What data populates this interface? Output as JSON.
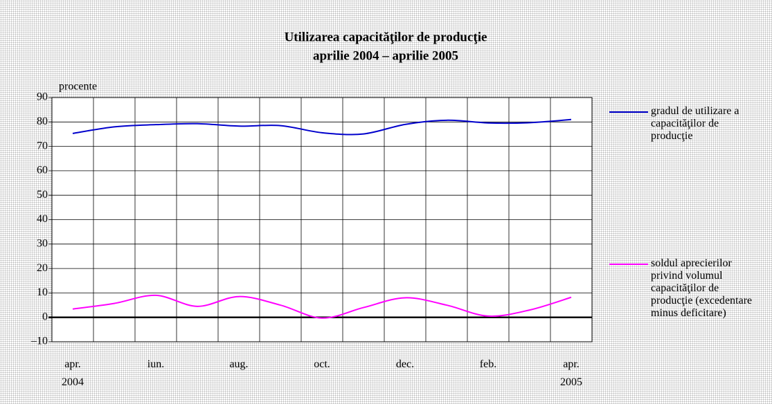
{
  "chart_data": {
    "type": "line",
    "title": "Utilizarea capacităţilor de producţie",
    "subtitle": "aprilie 2004 – aprilie 2005",
    "y_label": "procente",
    "categories": [
      "apr. 2004",
      null,
      "iun.",
      null,
      "aug.",
      null,
      "oct.",
      null,
      "dec.",
      null,
      "feb.",
      null,
      "apr. 2005"
    ],
    "series": [
      {
        "name": "gradul de utilizare a capacităţilor de producţie",
        "color": "#0000cc",
        "values": [
          75.3,
          78.0,
          78.9,
          79.3,
          78.3,
          78.5,
          75.6,
          75.1,
          79.0,
          80.7,
          79.6,
          79.7,
          81.0
        ]
      },
      {
        "name": "soldul aprecierilor privind volumul capacităţilor de producţie (excedentare minus deficitare)",
        "color": "#ff00ff",
        "values": [
          3.4,
          5.7,
          9.0,
          4.5,
          8.5,
          5.0,
          -0.3,
          4.0,
          8.0,
          5.0,
          0.5,
          3.0,
          8.2
        ]
      }
    ],
    "ylim": [
      -10,
      90
    ],
    "yticks": [
      {
        "value": -10,
        "label": "–10"
      },
      0,
      10,
      20,
      30,
      40,
      50,
      60,
      70,
      80,
      90
    ],
    "grid": true
  }
}
